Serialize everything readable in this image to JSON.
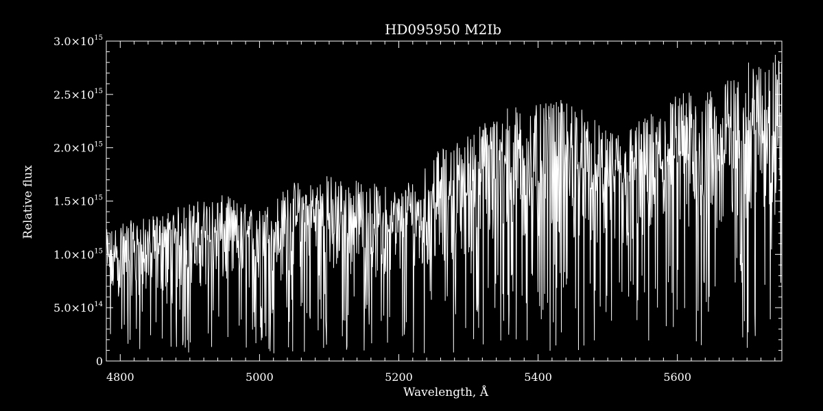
{
  "chart_data": {
    "type": "line",
    "title": "HD095950   M2Ib",
    "xlabel": "Wavelength, Å",
    "ylabel": "Relative flux",
    "xlim": [
      4780,
      5750
    ],
    "ylim": [
      0,
      3000000000000000.0
    ],
    "x_ticks": [
      4800,
      5000,
      5200,
      5400,
      5600
    ],
    "x_tick_labels": [
      "4800",
      "5000",
      "5200",
      "5400",
      "5600"
    ],
    "y_ticks": [
      0,
      500000000000000.0,
      1000000000000000.0,
      1500000000000000.0,
      2000000000000000.0,
      2500000000000000.0,
      3000000000000000.0
    ],
    "y_tick_labels": [
      {
        "mantissa": "0",
        "exponent": ""
      },
      {
        "mantissa": "5.0×10",
        "exponent": "14"
      },
      {
        "mantissa": "1.0×10",
        "exponent": "15"
      },
      {
        "mantissa": "1.5×10",
        "exponent": "15"
      },
      {
        "mantissa": "2.0×10",
        "exponent": "15"
      },
      {
        "mantissa": "2.5×10",
        "exponent": "15"
      },
      {
        "mantissa": "3.0×10",
        "exponent": "15"
      }
    ],
    "grid": false,
    "colors": {
      "background": "#000000",
      "foreground": "#ffffff",
      "line": "#ffffff"
    },
    "series": [
      {
        "x": [
          4780,
          4800,
          4850,
          4900,
          4950,
          5000,
          5050,
          5100,
          5150,
          5200,
          5250,
          5300,
          5350,
          5400,
          5450,
          5500,
          5550,
          5600,
          5650,
          5700,
          5750
        ],
        "values": [
          950000000000000.0,
          1000000000000000.0,
          1050000000000000.0,
          1150000000000000.0,
          1200000000000000.0,
          1100000000000000.0,
          1300000000000000.0,
          1350000000000000.0,
          1300000000000000.0,
          1250000000000000.0,
          1500000000000000.0,
          1650000000000000.0,
          1850000000000000.0,
          1850000000000000.0,
          1900000000000000.0,
          1650000000000000.0,
          1750000000000000.0,
          1950000000000000.0,
          1950000000000000.0,
          2150000000000000.0,
          2250000000000000.0
        ]
      }
    ]
  }
}
